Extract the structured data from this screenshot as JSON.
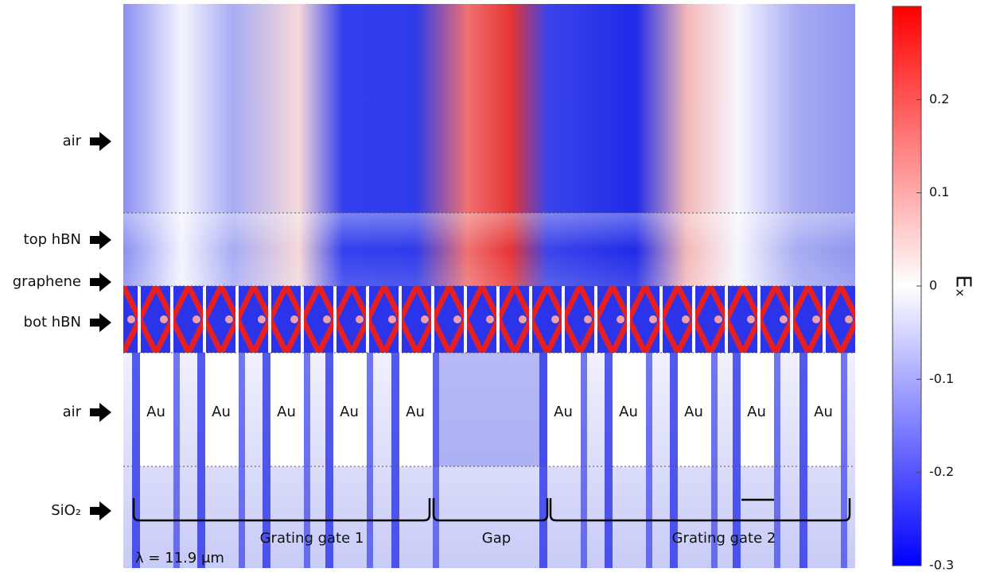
{
  "layers": [
    "air",
    "top hBN",
    "graphene",
    "bot hBN",
    "air",
    "SiO₂"
  ],
  "au_labels": [
    "Au",
    "Au",
    "Au",
    "Au",
    "Au",
    "Au",
    "Au",
    "Au",
    "Au",
    "Au"
  ],
  "regions": [
    "Grating gate 1",
    "Gap",
    "Grating gate 2"
  ],
  "wavelength": "λ = 11.9 μm",
  "colorbar": {
    "label": "Eₓ",
    "range": [
      -0.3,
      0.3
    ],
    "ticks": [
      0.2,
      0.1,
      0,
      -0.1,
      -0.2,
      -0.3
    ]
  }
}
